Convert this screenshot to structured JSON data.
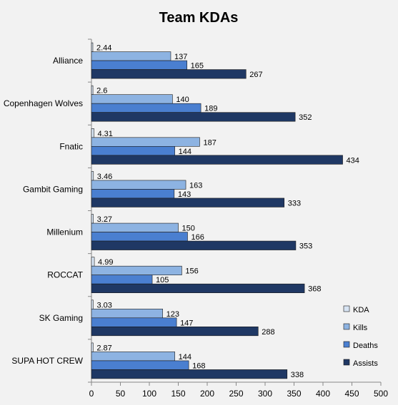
{
  "chart_data": {
    "type": "bar",
    "orientation": "horizontal",
    "title": "Team KDAs",
    "xlabel": "",
    "ylabel": "",
    "xlim": [
      0,
      500
    ],
    "xticks": [
      0,
      50,
      100,
      150,
      200,
      250,
      300,
      350,
      400,
      450,
      500
    ],
    "grid": false,
    "legend_position": "right",
    "categories": [
      "Alliance",
      "Copenhagen Wolves",
      "Fnatic",
      "Gambit Gaming",
      "Millenium",
      "ROCCAT",
      "SK Gaming",
      "SUPA HOT CREW"
    ],
    "series": [
      {
        "name": "KDA",
        "color": "#d7e4f3",
        "values": [
          2.44,
          2.6,
          4.31,
          3.46,
          3.27,
          4.99,
          3.03,
          2.87
        ]
      },
      {
        "name": "Kills",
        "color": "#8db3e2",
        "values": [
          137,
          140,
          187,
          163,
          150,
          156,
          123,
          144
        ]
      },
      {
        "name": "Deaths",
        "color": "#4a7fd0",
        "values": [
          165,
          189,
          144,
          143,
          166,
          105,
          147,
          168
        ]
      },
      {
        "name": "Assists",
        "color": "#1f3864",
        "values": [
          267,
          352,
          434,
          333,
          353,
          368,
          288,
          338
        ]
      }
    ]
  }
}
